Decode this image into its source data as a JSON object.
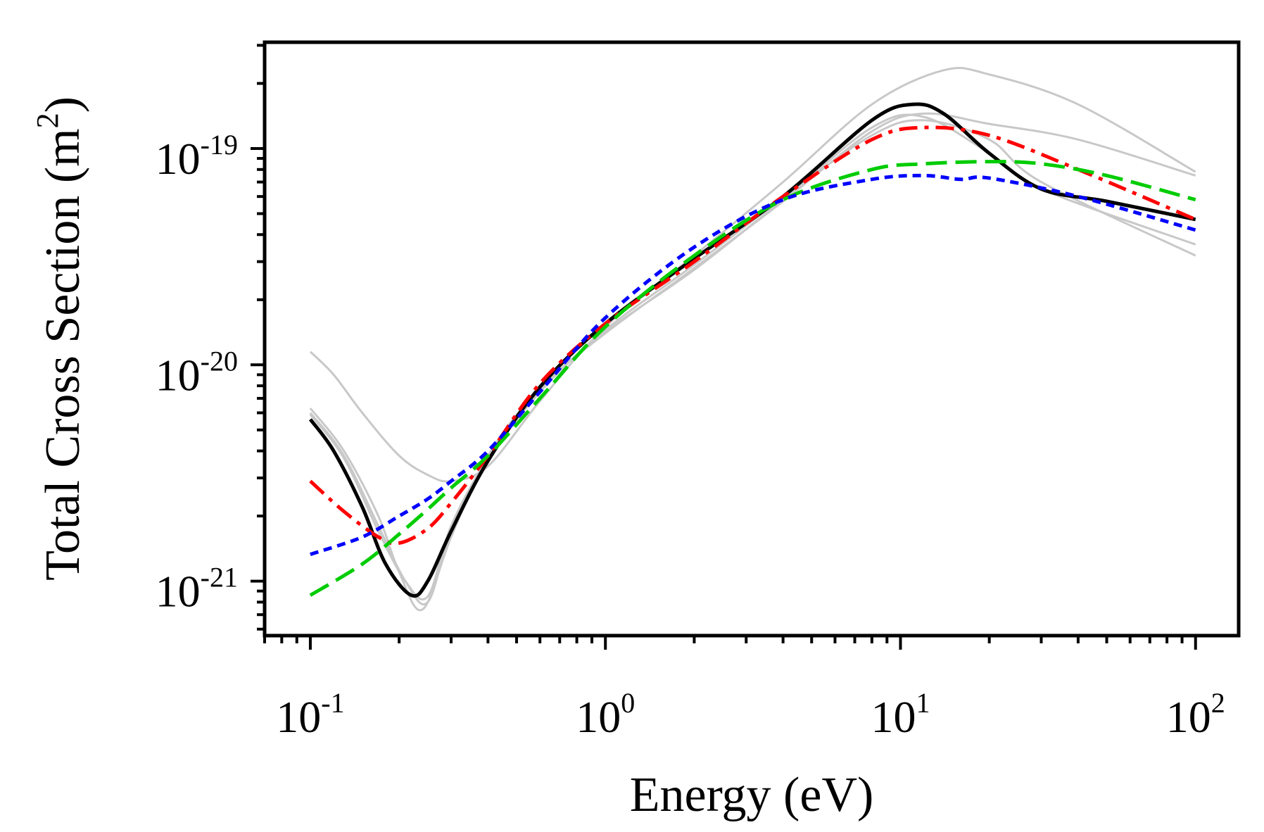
{
  "chart_data": {
    "type": "line",
    "xlabel": "Energy (eV)",
    "ylabel": "Total Cross Section (m",
    "ylabel_sup": "2",
    "ylabel_close": ")",
    "xscale": "log",
    "yscale": "log",
    "xlim": [
      0.07,
      140
    ],
    "ylim": [
      5.6e-22,
      3.1e-19
    ],
    "grid": false,
    "legend": "none",
    "xticks": [
      {
        "value": 0.1,
        "base": "10",
        "exp": "-1"
      },
      {
        "value": 1,
        "base": "10",
        "exp": "0"
      },
      {
        "value": 10,
        "base": "10",
        "exp": "1"
      },
      {
        "value": 100,
        "base": "10",
        "exp": "2"
      }
    ],
    "yticks": [
      {
        "value": 1e-21,
        "base": "10",
        "exp": "-21"
      },
      {
        "value": 1e-20,
        "base": "10",
        "exp": "-20"
      },
      {
        "value": 1e-19,
        "base": "10",
        "exp": "-19"
      }
    ],
    "series": [
      {
        "color": "#c8c8c8",
        "width": 3,
        "dash": "",
        "x": [
          0.1,
          0.12,
          0.15,
          0.2,
          0.25,
          0.3,
          0.4,
          0.6,
          1,
          2,
          4,
          8,
          14,
          20,
          40,
          100
        ],
        "y": [
          1.15e-20,
          9e-21,
          6e-21,
          3.8e-21,
          3.1e-21,
          2.9e-21,
          3.4e-21,
          6.8e-21,
          1.5e-20,
          3.2e-20,
          7e-20,
          1.6e-19,
          2.3e-19,
          2.2e-19,
          1.6e-19,
          7.8e-20
        ]
      },
      {
        "color": "#c8c8c8",
        "width": 3,
        "dash": "",
        "x": [
          0.1,
          0.13,
          0.17,
          0.2,
          0.24,
          0.3,
          0.4,
          0.6,
          1,
          2,
          4,
          8,
          12,
          20,
          40,
          100
        ],
        "y": [
          6.3e-21,
          4e-21,
          2e-21,
          1.1e-21,
          7.4e-22,
          1.6e-21,
          3.8e-21,
          7.8e-21,
          1.4e-20,
          2.8e-20,
          5.7e-20,
          1.2e-19,
          1.45e-19,
          1.3e-19,
          1.1e-19,
          7.5e-20
        ]
      },
      {
        "color": "#c8c8c8",
        "width": 3,
        "dash": "",
        "x": [
          0.1,
          0.13,
          0.17,
          0.21,
          0.25,
          0.3,
          0.4,
          0.6,
          1,
          2,
          4,
          8,
          12,
          20,
          30,
          100
        ],
        "y": [
          6e-21,
          3.8e-21,
          1.8e-21,
          1e-21,
          8e-22,
          1.7e-21,
          3.6e-21,
          7.5e-21,
          1.45e-20,
          2.9e-20,
          5.9e-20,
          1.15e-19,
          1.35e-19,
          1.1e-19,
          7e-20,
          3.2e-20
        ]
      },
      {
        "color": "#c8c8c8",
        "width": 3,
        "dash": "",
        "x": [
          0.1,
          0.13,
          0.17,
          0.21,
          0.25,
          0.3,
          0.4,
          0.6,
          1,
          2,
          4,
          8,
          12,
          20,
          30,
          100
        ],
        "y": [
          5.9e-21,
          3.7e-21,
          1.7e-21,
          1e-21,
          8.5e-22,
          1.8e-21,
          3.7e-21,
          7.7e-21,
          1.42e-20,
          2.75e-20,
          5.8e-20,
          1.25e-19,
          1.4e-19,
          9.5e-20,
          6.5e-20,
          3.6e-20
        ]
      },
      {
        "color": "#000000",
        "width": 5,
        "dash": "",
        "x": [
          0.1,
          0.12,
          0.15,
          0.18,
          0.22,
          0.25,
          0.3,
          0.4,
          0.6,
          1,
          2,
          4,
          8,
          11,
          14,
          20,
          30,
          50,
          100
        ],
        "y": [
          5.6e-21,
          4e-21,
          2.2e-21,
          1.2e-21,
          8.6e-22,
          1e-21,
          1.7e-21,
          3.6e-21,
          7.9e-21,
          1.55e-20,
          3.1e-20,
          6e-20,
          1.35e-19,
          1.6e-19,
          1.45e-19,
          9.5e-20,
          6.5e-20,
          5.7e-20,
          4.7e-20
        ]
      },
      {
        "color": "#ff0000",
        "width": 5,
        "dash": "26,10,6,10",
        "x": [
          0.1,
          0.13,
          0.17,
          0.2,
          0.25,
          0.3,
          0.4,
          0.6,
          1,
          2,
          4,
          8,
          12,
          20,
          40,
          100
        ],
        "y": [
          2.9e-21,
          2.1e-21,
          1.6e-21,
          1.5e-21,
          1.75e-21,
          2.3e-21,
          3.8e-21,
          8.2e-21,
          1.55e-20,
          3e-20,
          6e-20,
          1.1e-19,
          1.25e-19,
          1.15e-19,
          8e-20,
          4.7e-20
        ]
      },
      {
        "color": "#00cc00",
        "width": 5,
        "dash": "30,12",
        "x": [
          0.1,
          0.15,
          0.2,
          0.25,
          0.3,
          0.4,
          0.6,
          1,
          2,
          4,
          8,
          12,
          20,
          30,
          50,
          100
        ],
        "y": [
          8.6e-22,
          1.2e-21,
          1.65e-21,
          2.15e-21,
          2.7e-21,
          3.8e-21,
          7e-21,
          1.5e-20,
          3.2e-20,
          5.8e-20,
          8e-20,
          8.5e-20,
          8.7e-20,
          8.5e-20,
          7.5e-20,
          5.8e-20
        ]
      },
      {
        "color": "#0000ff",
        "width": 5,
        "dash": "12,8",
        "x": [
          0.1,
          0.15,
          0.2,
          0.25,
          0.3,
          0.4,
          0.6,
          1,
          2,
          4,
          8,
          12,
          16,
          20,
          40,
          100
        ],
        "y": [
          1.33e-21,
          1.6e-21,
          2e-21,
          2.4e-21,
          2.9e-21,
          4e-21,
          7.5e-21,
          1.65e-20,
          3.5e-20,
          5.8e-20,
          7.2e-20,
          7.5e-20,
          7.2e-20,
          7.3e-20,
          6e-20,
          4.2e-20
        ]
      }
    ]
  }
}
